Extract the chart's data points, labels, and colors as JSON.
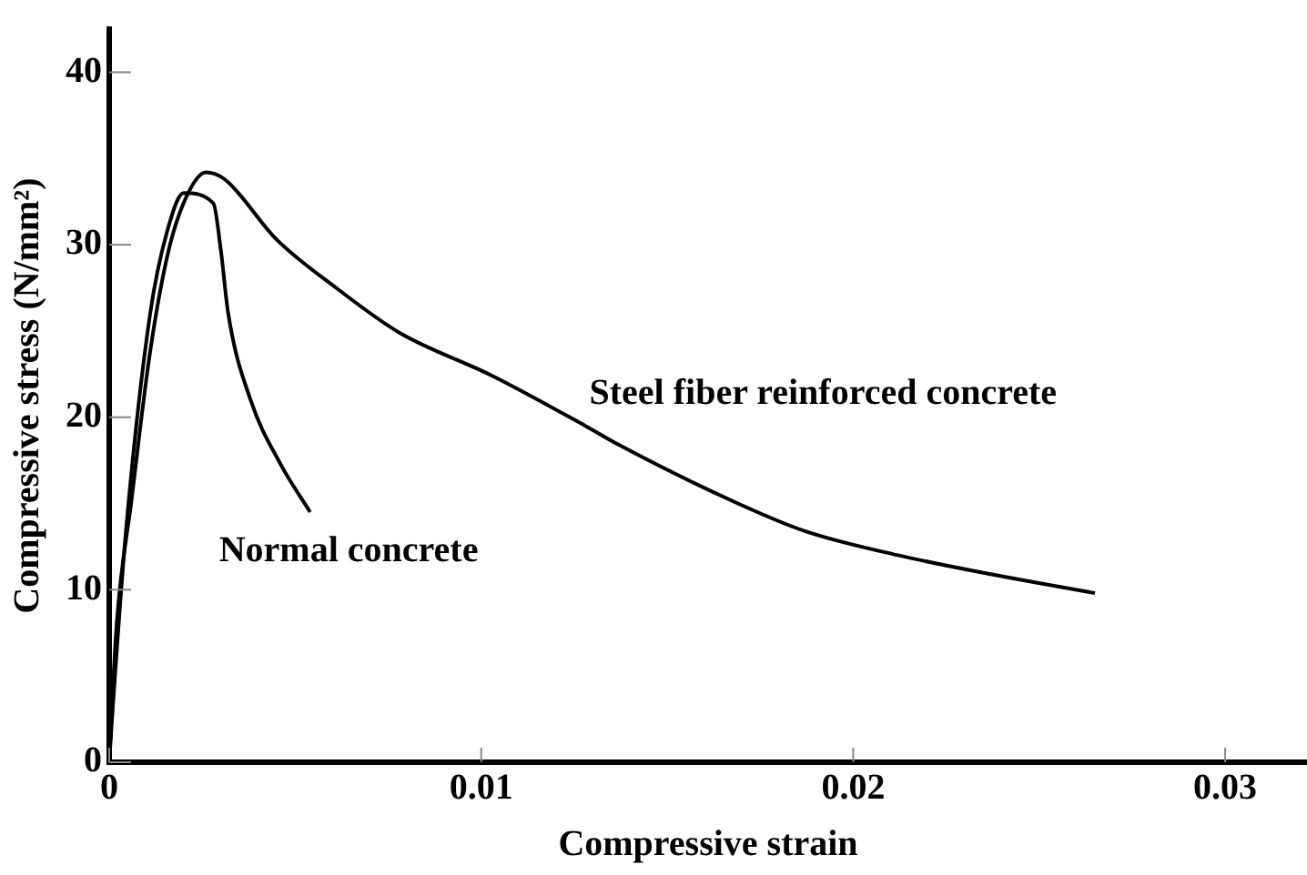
{
  "chart_data": {
    "type": "line",
    "xlabel": "Compressive strain",
    "ylabel": "Compressive stress (N/mm²)",
    "xlim": [
      0,
      0.0322
    ],
    "ylim": [
      0,
      42.5
    ],
    "xticks": [
      0,
      0.01,
      0.02,
      0.03
    ],
    "yticks": [
      0,
      10,
      20,
      30,
      40
    ],
    "grid": false,
    "legend": false,
    "marker": "none",
    "line_style": "solid",
    "series": [
      {
        "name": "Steel fiber reinforced concrete",
        "color": "#000000",
        "x": [
          0,
          0.0002,
          0.0006,
          0.0011,
          0.0016,
          0.0021,
          0.0026,
          0.0031,
          0.0045,
          0.0061,
          0.0078,
          0.0103,
          0.0128,
          0.0137,
          0.0167,
          0.0187,
          0.0212,
          0.0237,
          0.0265
        ],
        "values": [
          0,
          8,
          15.2,
          23.8,
          29.7,
          32.9,
          34.2,
          33.8,
          30.3,
          27.5,
          24.9,
          22.4,
          19.5,
          18.4,
          15.2,
          13.4,
          12,
          10.9,
          9.8
        ]
      },
      {
        "name": "Normal concrete",
        "color": "#000000",
        "x": [
          0,
          0.0001,
          0.00045,
          0.0011,
          0.0016,
          0.002,
          0.0028,
          0.003,
          0.0032,
          0.0038,
          0.0046,
          0.0054
        ],
        "values": [
          0,
          3.3,
          13.4,
          26,
          31.1,
          33,
          32.4,
          29.7,
          26,
          21,
          17.3,
          14.5
        ]
      }
    ]
  }
}
